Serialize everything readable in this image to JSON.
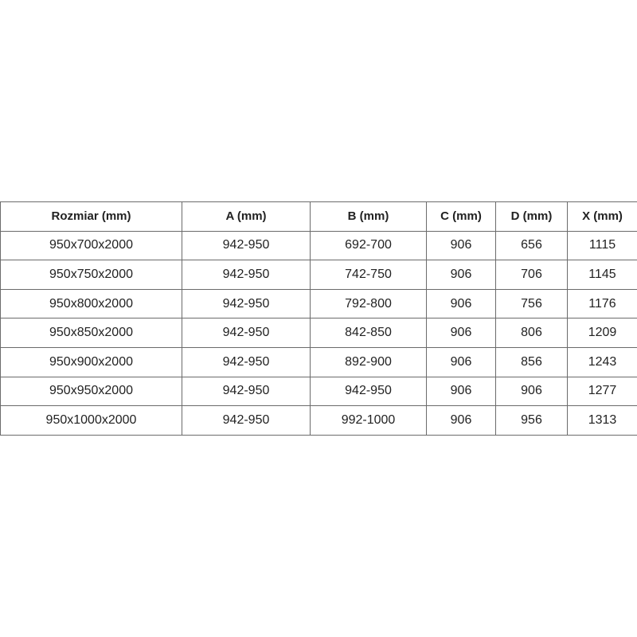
{
  "table": {
    "headers": [
      "Rozmiar (mm)",
      "A (mm)",
      "B (mm)",
      "C (mm)",
      "D (mm)",
      "X (mm)"
    ],
    "rows": [
      [
        "950x700x2000",
        "942-950",
        "692-700",
        "906",
        "656",
        "1115"
      ],
      [
        "950x750x2000",
        "942-950",
        "742-750",
        "906",
        "706",
        "1145"
      ],
      [
        "950x800x2000",
        "942-950",
        "792-800",
        "906",
        "756",
        "1176"
      ],
      [
        "950x850x2000",
        "942-950",
        "842-850",
        "906",
        "806",
        "1209"
      ],
      [
        "950x900x2000",
        "942-950",
        "892-900",
        "906",
        "856",
        "1243"
      ],
      [
        "950x950x2000",
        "942-950",
        "942-950",
        "906",
        "906",
        "1277"
      ],
      [
        "950x1000x2000",
        "942-950",
        "992-1000",
        "906",
        "956",
        "1313"
      ]
    ]
  }
}
